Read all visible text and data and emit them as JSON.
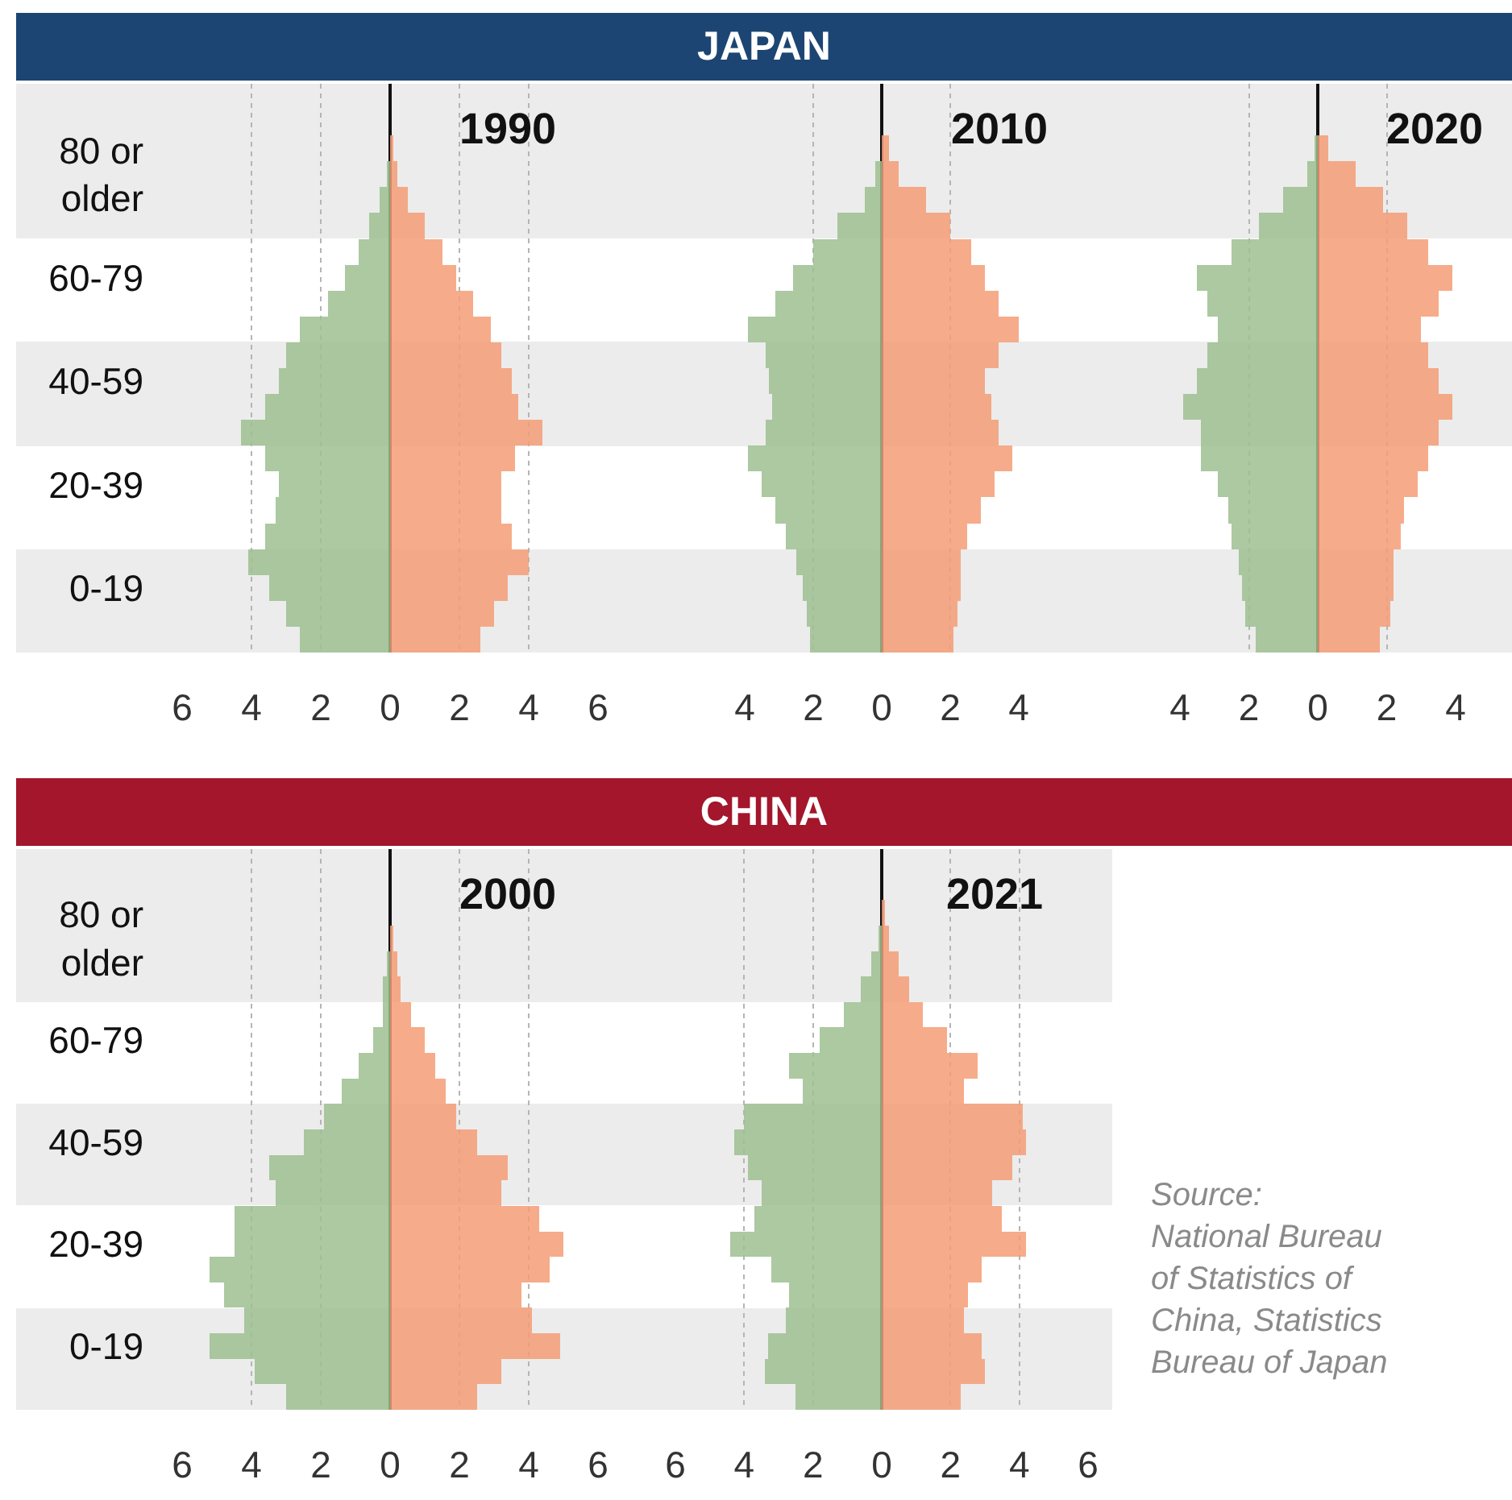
{
  "chart_data": [
    {
      "type": "bar",
      "orientation": "horizontal",
      "title": "1990",
      "annotations": [
        "JAPAN"
      ],
      "categories": [
        null,
        null,
        null,
        "80 or\nolder",
        null,
        null,
        null,
        "60-79",
        null,
        null,
        null,
        "40-59",
        null,
        null,
        null,
        "20-39",
        null,
        null,
        null,
        "0-19",
        null,
        null
      ],
      "series": [
        {
          "color": "#9ebf91",
          "values": [
            null,
            null,
            0,
            -0.1,
            -0.3,
            -0.6,
            -0.9,
            -1.3,
            -1.8,
            -2.6,
            -3.0,
            -3.2,
            -3.6,
            -4.3,
            -3.6,
            -3.2,
            -3.3,
            -3.6,
            -4.1,
            -3.5,
            -3.0,
            -2.6
          ]
        },
        {
          "color": "#f59e76",
          "values": [
            null,
            null,
            0.1,
            0.2,
            0.5,
            1.0,
            1.5,
            1.9,
            2.4,
            2.9,
            3.2,
            3.5,
            3.7,
            4.4,
            3.6,
            3.2,
            3.2,
            3.5,
            4.0,
            3.4,
            3.0,
            2.6
          ]
        }
      ],
      "xlim": [
        -6,
        6
      ],
      "xticks": [
        {
          "value": -6,
          "label": "6"
        },
        {
          "value": -4,
          "label": "4"
        },
        {
          "value": -2,
          "label": "2"
        },
        0,
        2,
        4,
        6
      ],
      "grid": "x"
    },
    {
      "type": "bar",
      "orientation": "horizontal",
      "title": "2010",
      "categories": [
        null,
        null,
        null,
        null,
        null,
        null,
        null,
        null,
        null,
        null,
        null,
        null,
        null,
        null,
        null,
        null,
        null,
        null,
        null,
        null,
        null,
        null
      ],
      "series": [
        {
          "color": "#9ebf91",
          "values": [
            null,
            null,
            0,
            -0.2,
            -0.5,
            -1.3,
            -2.0,
            -2.6,
            -3.1,
            -3.9,
            -3.4,
            -3.3,
            -3.2,
            -3.4,
            -3.9,
            -3.5,
            -3.1,
            -2.8,
            -2.5,
            -2.3,
            -2.2,
            -2.1
          ]
        },
        {
          "color": "#f59e76",
          "values": [
            null,
            null,
            0.2,
            0.5,
            1.3,
            2.0,
            2.6,
            3.0,
            3.4,
            4.0,
            3.4,
            3.0,
            3.2,
            3.4,
            3.8,
            3.3,
            2.9,
            2.5,
            2.3,
            2.3,
            2.2,
            2.1
          ]
        }
      ],
      "xlim": [
        -4,
        4
      ],
      "xticks": [
        {
          "value": -4,
          "label": "4"
        },
        {
          "value": -2,
          "label": "2"
        },
        0,
        2,
        4
      ],
      "grid": "x"
    },
    {
      "type": "bar",
      "orientation": "horizontal",
      "title": "2020",
      "categories": [
        null,
        null,
        null,
        null,
        null,
        null,
        null,
        null,
        null,
        null,
        null,
        null,
        null,
        null,
        null,
        null,
        null,
        null,
        null,
        null,
        null,
        null
      ],
      "series": [
        {
          "color": "#9ebf91",
          "values": [
            null,
            null,
            -0.1,
            -0.3,
            -1.0,
            -1.7,
            -2.5,
            -3.5,
            -3.2,
            -2.9,
            -3.2,
            -3.5,
            -3.9,
            -3.4,
            -3.4,
            -2.9,
            -2.6,
            -2.5,
            -2.3,
            -2.2,
            -2.1,
            -1.8
          ]
        },
        {
          "color": "#f59e76",
          "values": [
            null,
            null,
            0.3,
            1.1,
            1.9,
            2.6,
            3.2,
            3.9,
            3.5,
            3.0,
            3.2,
            3.5,
            3.9,
            3.5,
            3.2,
            2.9,
            2.5,
            2.4,
            2.2,
            2.2,
            2.1,
            1.8
          ]
        }
      ],
      "xlim": [
        -4,
        4
      ],
      "xticks": [
        {
          "value": -4,
          "label": "4"
        },
        {
          "value": -2,
          "label": "2"
        },
        0,
        2,
        4
      ],
      "grid": "x"
    },
    {
      "type": "bar",
      "orientation": "horizontal",
      "title": "2000",
      "annotations": [
        "CHINA"
      ],
      "categories": [
        null,
        null,
        null,
        "80 or\nolder",
        null,
        null,
        null,
        "60-79",
        null,
        null,
        null,
        "40-59",
        null,
        null,
        null,
        "20-39",
        null,
        null,
        null,
        "0-19",
        null,
        null
      ],
      "series": [
        {
          "color": "#9ebf91",
          "values": [
            null,
            null,
            0,
            0,
            -0.1,
            -0.2,
            -0.2,
            -0.5,
            -0.9,
            -1.4,
            -1.9,
            -2.5,
            -3.5,
            -3.3,
            -4.5,
            -4.5,
            -5.2,
            -4.8,
            -4.2,
            -5.2,
            -3.9,
            -3.0
          ]
        },
        {
          "color": "#f59e76",
          "values": [
            null,
            null,
            0,
            0.1,
            0.2,
            0.3,
            0.6,
            1.0,
            1.3,
            1.6,
            1.9,
            2.5,
            3.4,
            3.2,
            4.3,
            5.0,
            4.6,
            3.8,
            4.1,
            4.9,
            3.2,
            2.5
          ]
        }
      ],
      "xlim": [
        -6,
        6
      ],
      "xticks": [
        {
          "value": -6,
          "label": "6"
        },
        {
          "value": -4,
          "label": "4"
        },
        {
          "value": -2,
          "label": "2"
        },
        0,
        2,
        4,
        6
      ],
      "grid": "x"
    },
    {
      "type": "bar",
      "orientation": "horizontal",
      "title": "2021",
      "annotations": [
        "Source:\nNational Bureau\nof Statistics of\nChina, Statistics\nBureau of Japan"
      ],
      "categories": [
        null,
        null,
        null,
        null,
        null,
        null,
        null,
        null,
        null,
        null,
        null,
        null,
        null,
        null,
        null,
        null,
        null,
        null,
        null,
        null,
        null,
        null
      ],
      "series": [
        {
          "color": "#9ebf91",
          "values": [
            null,
            null,
            0,
            -0.1,
            -0.3,
            -0.6,
            -1.1,
            -1.8,
            -2.7,
            -2.3,
            -4.0,
            -4.3,
            -3.9,
            -3.5,
            -3.7,
            -4.4,
            -3.2,
            -2.7,
            -2.8,
            -3.3,
            -3.4,
            -2.5
          ]
        },
        {
          "color": "#f59e76",
          "values": [
            null,
            null,
            0.1,
            0.2,
            0.5,
            0.8,
            1.2,
            1.9,
            2.8,
            2.4,
            4.1,
            4.2,
            3.8,
            3.2,
            3.5,
            4.2,
            2.9,
            2.5,
            2.4,
            2.9,
            3.0,
            2.3
          ]
        }
      ],
      "xlim": [
        -6,
        6
      ],
      "xticks": [
        {
          "value": -6,
          "label": "6"
        },
        {
          "value": -4,
          "label": "4"
        },
        {
          "value": -2,
          "label": "2"
        },
        0,
        2,
        4,
        6
      ],
      "grid": "x"
    }
  ]
}
